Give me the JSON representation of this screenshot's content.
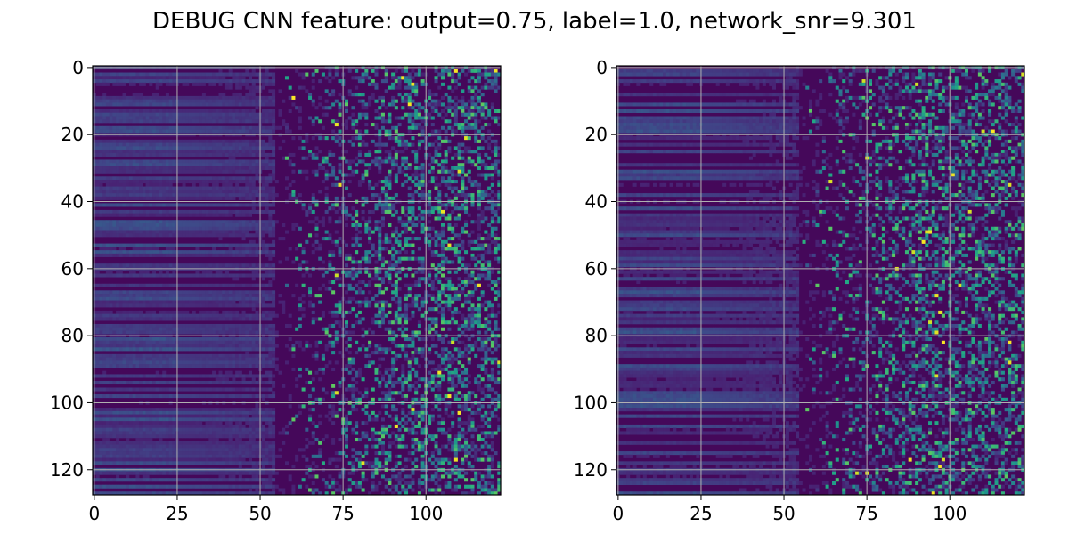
{
  "title": "DEBUG CNN feature: output=0.75, label=1.0, network_snr=9.301",
  "chart_data": [
    {
      "type": "heatmap",
      "colormap": "viridis",
      "rows": 128,
      "cols": 123,
      "xlim": [
        -0.5,
        122.5
      ],
      "ylim": [
        127.5,
        -0.5
      ],
      "xticks": [
        0,
        25,
        50,
        75,
        100
      ],
      "yticks": [
        0,
        20,
        40,
        60,
        80,
        100,
        120
      ],
      "grid": true,
      "description": "left panel: dark columns 0-25 with faint horizontal banding, noisy bright speckle increasing beyond column ~60"
    },
    {
      "type": "heatmap",
      "colormap": "viridis",
      "rows": 128,
      "cols": 123,
      "xlim": [
        -0.5,
        122.5
      ],
      "ylim": [
        127.5,
        -0.5
      ],
      "xticks": [
        0,
        25,
        50,
        75,
        100
      ],
      "yticks": [
        0,
        20,
        40,
        60,
        80,
        100,
        120
      ],
      "grid": true,
      "description": "right panel: dark columns 0-25 with horizontal banding, noisy bright speckle beyond column ~60"
    }
  ]
}
